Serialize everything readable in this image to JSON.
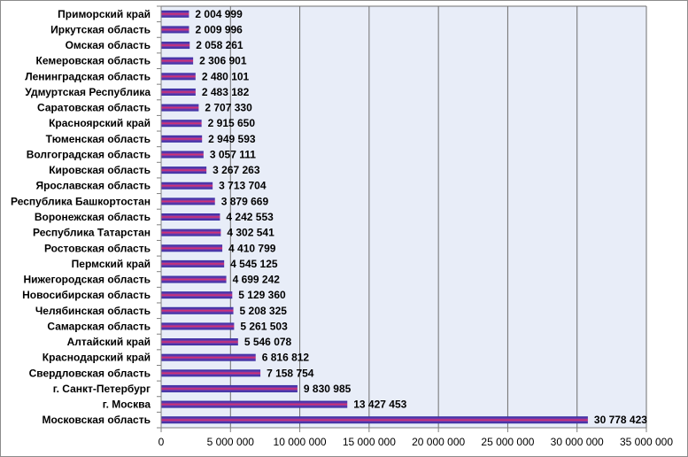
{
  "chart_data": {
    "type": "bar",
    "orientation": "horizontal",
    "title": "",
    "xlabel": "",
    "ylabel": "",
    "xlim": [
      0,
      35000000
    ],
    "grid": true,
    "legend": "none",
    "colors": {
      "bar_outer": "#2b2b9f",
      "bar_inner": "#e0306a",
      "plot_bg": "#e8edf8",
      "grid": "#6f6f6f"
    },
    "ticks": [
      "0",
      "5 000 000",
      "10 000 000",
      "15 000 000",
      "20 000 000",
      "25 000 000",
      "30 000 000",
      "35 000 000"
    ],
    "categories": [
      "Приморский край",
      "Иркутская область",
      "Омская область",
      "Кемеровская область",
      "Ленинградская область",
      "Удмуртская Республика",
      "Саратовская область",
      "Красноярский край",
      "Тюменская область",
      "Волгоградская область",
      "Кировская область",
      "Ярославская область",
      "Республика Башкортостан",
      "Воронежская область",
      "Республика Татарстан",
      "Ростовская область",
      "Пермский край",
      "Нижегородская область",
      "Новосибирская область",
      "Челябинская область",
      "Самарская область",
      "Алтайский край",
      "Краснодарский край",
      "Свердловская область",
      "г. Санкт-Петербург",
      "г. Москва",
      "Московская область"
    ],
    "values": [
      2004999,
      2009996,
      2058261,
      2306901,
      2480101,
      2483182,
      2707330,
      2915650,
      2949593,
      3057111,
      3267263,
      3713704,
      3879669,
      4242553,
      4302541,
      4410799,
      4545125,
      4699242,
      5129360,
      5208325,
      5261503,
      5546078,
      6816812,
      7158754,
      9830985,
      13427453,
      30778423
    ],
    "value_labels": [
      "2 004 999",
      "2 009 996",
      "2 058 261",
      "2 306 901",
      "2 480 101",
      "2 483 182",
      "2 707 330",
      "2 915 650",
      "2 949 593",
      "3 057 111",
      "3 267 263",
      "3 713 704",
      "3 879 669",
      "4 242 553",
      "4 302 541",
      "4 410 799",
      "4 545 125",
      "4 699 242",
      "5 129 360",
      "5 208 325",
      "5 261 503",
      "5 546 078",
      "6 816 812",
      "7 158 754",
      "9 830 985",
      "13 427 453",
      "30 778 423"
    ]
  }
}
